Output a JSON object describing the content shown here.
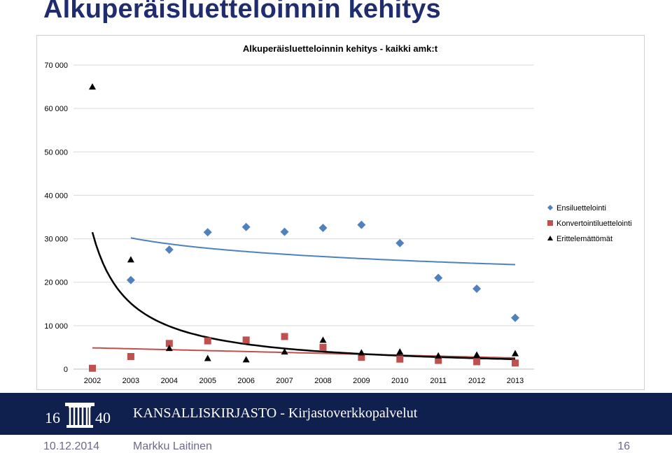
{
  "slide": {
    "title": "Alkuperäisluetteloinnin kehitys",
    "organization": "KANSALLISKIRJASTO - Kirjastoverkkopalvelut",
    "logo_text": "1640",
    "date": "10.12.2014",
    "author": "Markku Laitinen",
    "page": "16"
  },
  "colors": {
    "title": "#1f2d6e",
    "banner": "#0f1f4e",
    "series_1": "#4f81bd",
    "series_2": "#c0504d",
    "series_3": "#000000",
    "trend_1": "#4f81bd",
    "trend_2": "#c0504d",
    "trend_3": "#000000"
  },
  "chart_data": {
    "type": "scatter",
    "title": "Alkuperäisluetteloinnin kehitys - kaikki amk:t",
    "xlabel": "",
    "ylabel": "",
    "categories": [
      "2002",
      "2003",
      "2004",
      "2005",
      "2006",
      "2007",
      "2008",
      "2009",
      "2010",
      "2011",
      "2012",
      "2013"
    ],
    "ylim": [
      0,
      70000
    ],
    "yticks": [
      0,
      10000,
      20000,
      30000,
      40000,
      50000,
      60000,
      70000
    ],
    "ytick_labels": [
      "0",
      "10 000",
      "20 000",
      "30 000",
      "40 000",
      "50 000",
      "60 000",
      "70 000"
    ],
    "grid": true,
    "legend_position": "right",
    "series": [
      {
        "name": "Ensiluettelointi",
        "marker": "diamond",
        "values": [
          null,
          20500,
          27500,
          31500,
          32700,
          31600,
          32500,
          33200,
          29000,
          21000,
          18500,
          11800
        ],
        "trendline": "logarithmic"
      },
      {
        "name": "Konvertointiluettelointi",
        "marker": "square",
        "values": [
          200,
          2900,
          5900,
          6500,
          6700,
          7500,
          5000,
          2700,
          2300,
          2000,
          1700,
          1400
        ],
        "trendline": "linear"
      },
      {
        "name": "Erittelemättömät",
        "marker": "triangle",
        "values": [
          65000,
          25200,
          4800,
          2500,
          2200,
          4000,
          6700,
          3800,
          4000,
          3100,
          3300,
          3600
        ],
        "trendline": "power"
      }
    ]
  }
}
